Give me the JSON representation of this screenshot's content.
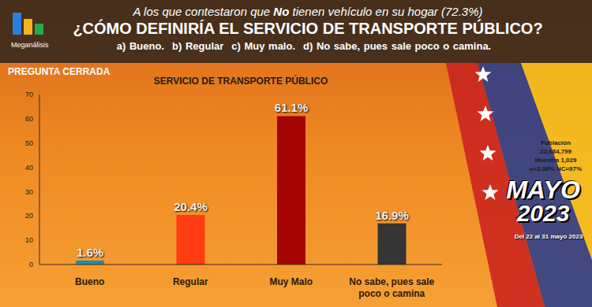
{
  "header": {
    "brand": "Meganálisis",
    "note": "A los que contestaron que No tienen vehículo en su hogar (72.3%)",
    "question": "¿CÓMO DEFINIRÍA EL SERVICIO DE TRANSPORTE PÚBLICO?",
    "options": [
      "a) Bueno.",
      "b) Regular",
      "c) Muy malo.",
      "d) No sabe, pues sale poco o camina."
    ]
  },
  "label": "PREGUNTA CERRADA",
  "sidebar": {
    "lines": [
      "Población",
      "22,684,799",
      "Muestra 1,029",
      "e=3.38% NC=97%"
    ],
    "month": "MAYO",
    "year": "2023",
    "dates": "Del 22 al 31 mayo 2023"
  },
  "chart_data": {
    "type": "bar",
    "title": "SERVICIO DE TRANSPORTE PÚBLICO",
    "categories": [
      "Bueno",
      "Regular",
      "Muy Malo",
      "No sabe, pues sale poco o camina"
    ],
    "values": [
      1.6,
      20.4,
      61.1,
      16.9
    ],
    "value_labels": [
      "1.6%",
      "20.4%",
      "61.1%",
      "16.9%"
    ],
    "colors": [
      "#1e8fae",
      "#ff3c12",
      "#a30303",
      "#353535"
    ],
    "ylim": [
      0,
      70
    ],
    "yticks": [
      0,
      10,
      20,
      30,
      40,
      50,
      60,
      70
    ],
    "grid": false,
    "data_labels": true
  }
}
